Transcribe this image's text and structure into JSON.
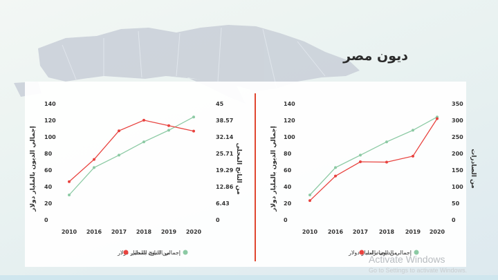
{
  "page": {
    "title": "ديون مصر",
    "watermark_title": "Activate Windows",
    "watermark_sub": "Go to Settings to activate Windows."
  },
  "colors": {
    "green": "#8ccaa4",
    "red": "#e8433f",
    "divider": "#e0452e",
    "panel": "#ffffff",
    "map": "#c7cdd6"
  },
  "chart_data": [
    {
      "type": "line",
      "categories": [
        "2010",
        "2016",
        "2017",
        "2018",
        "2019",
        "2020"
      ],
      "ylabel_left": "إجمالي الديون بالمليار دولار",
      "ylabel_right": "من الناتج المحلى",
      "left_ticks": [
        "0",
        "20",
        "40",
        "60",
        "80",
        "100",
        "120",
        "140"
      ],
      "right_ticks": [
        "0",
        "6.43",
        "12.86",
        "19.29",
        "25.71",
        "32.14",
        "38.57",
        "45"
      ],
      "ylim_left": [
        0,
        140
      ],
      "ylim_right": [
        0,
        45
      ],
      "series": [
        {
          "name": "إجمالي الديون بالمليار دولار",
          "axis": "left",
          "color": "#8ccaa4",
          "values": [
            30,
            63,
            78,
            94,
            108,
            124
          ]
        },
        {
          "name": "من الناتج المحلى",
          "axis": "right",
          "color": "#e8433f",
          "values": [
            14.8,
            23.4,
            34.5,
            38.6,
            36.5,
            34.4
          ]
        }
      ],
      "legend": "bottom"
    },
    {
      "type": "line",
      "categories": [
        "2010",
        "2016",
        "2017",
        "2018",
        "2019",
        "2020"
      ],
      "ylabel_left": "إجمالي الديون بالمليار دولار",
      "ylabel_right": "من الصادرات",
      "left_ticks": [
        "0",
        "20",
        "40",
        "60",
        "80",
        "100",
        "120",
        "140"
      ],
      "right_ticks": [
        "0",
        "50",
        "100",
        "150",
        "200",
        "250",
        "300",
        "350"
      ],
      "ylim_left": [
        0,
        140
      ],
      "ylim_right": [
        0,
        350
      ],
      "series": [
        {
          "name": "إجمالي الديون بالمليار دولار",
          "axis": "left",
          "color": "#8ccaa4",
          "values": [
            30,
            63,
            78,
            94,
            108,
            124
          ]
        },
        {
          "name": "من الصادرات",
          "axis": "right",
          "color": "#e8433f",
          "values": [
            58,
            132,
            175,
            174,
            192,
            305
          ]
        }
      ],
      "legend": "bottom"
    }
  ]
}
